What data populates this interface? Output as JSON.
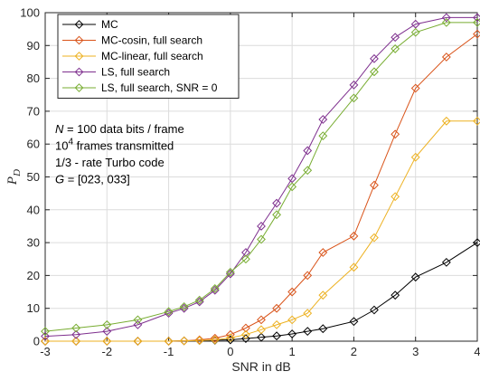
{
  "chart_data": {
    "type": "line",
    "xlabel": "SNR in dB",
    "ylabel": "P_D",
    "xlim": [
      -3,
      4
    ],
    "ylim": [
      0,
      100
    ],
    "xticks": [
      -3,
      -2,
      -1,
      0,
      1,
      2,
      3,
      4
    ],
    "yticks": [
      0,
      10,
      20,
      30,
      40,
      50,
      60,
      70,
      80,
      90,
      100
    ],
    "grid": true,
    "legend_position": "top-left",
    "x": [
      -3,
      -2.5,
      -2,
      -1.5,
      -1,
      -0.75,
      -0.5,
      -0.25,
      0,
      0.25,
      0.5,
      0.75,
      1,
      1.25,
      1.5,
      2,
      2.33,
      2.67,
      3,
      3.5,
      4
    ],
    "series": [
      {
        "name": "MC",
        "color": "#000000",
        "values": [
          0,
          0,
          0,
          0,
          0,
          0.1,
          0.2,
          0.3,
          0.4,
          0.8,
          1.2,
          1.6,
          2.2,
          3.0,
          3.8,
          6.0,
          9.5,
          14.0,
          19.5,
          24.0,
          30.0
        ]
      },
      {
        "name": "MC-cosin, full search",
        "color": "#D95319",
        "values": [
          0,
          0,
          0,
          0,
          0,
          0.1,
          0.4,
          0.9,
          2.0,
          4.0,
          6.5,
          10.0,
          15.0,
          20.0,
          27.0,
          32.0,
          47.5,
          63.0,
          77.0,
          86.5,
          93.5
        ]
      },
      {
        "name": "MC-linear, full search",
        "color": "#EDB120",
        "values": [
          0,
          0,
          0,
          0,
          0,
          0.1,
          0.2,
          0.4,
          1.0,
          2.0,
          3.5,
          5.0,
          6.5,
          8.5,
          14.0,
          22.5,
          31.5,
          44.0,
          56.0,
          67.0,
          67.0
        ]
      },
      {
        "name": "LS, full search",
        "color": "#7E2F8E",
        "values": [
          1.5,
          2.0,
          3.0,
          5.0,
          8.5,
          10.0,
          12.0,
          15.5,
          20.5,
          27.0,
          35.0,
          42.0,
          49.5,
          58.0,
          67.5,
          78.0,
          86.0,
          92.5,
          96.5,
          98.5,
          98.5
        ]
      },
      {
        "name": "LS, full search, SNR = 0",
        "color": "#77AC30",
        "values": [
          3.0,
          4.0,
          5.0,
          6.5,
          9.0,
          10.5,
          12.5,
          16.0,
          21.0,
          25.0,
          31.0,
          38.5,
          47.0,
          52.0,
          62.5,
          74.0,
          82.0,
          89.0,
          94.0,
          97.0,
          97.0
        ]
      }
    ],
    "annotations": [
      "N = 100 data bits / frame",
      "10^4 frames transmitted",
      "1/3 - rate Turbo code",
      "G = [023, 033]"
    ]
  }
}
